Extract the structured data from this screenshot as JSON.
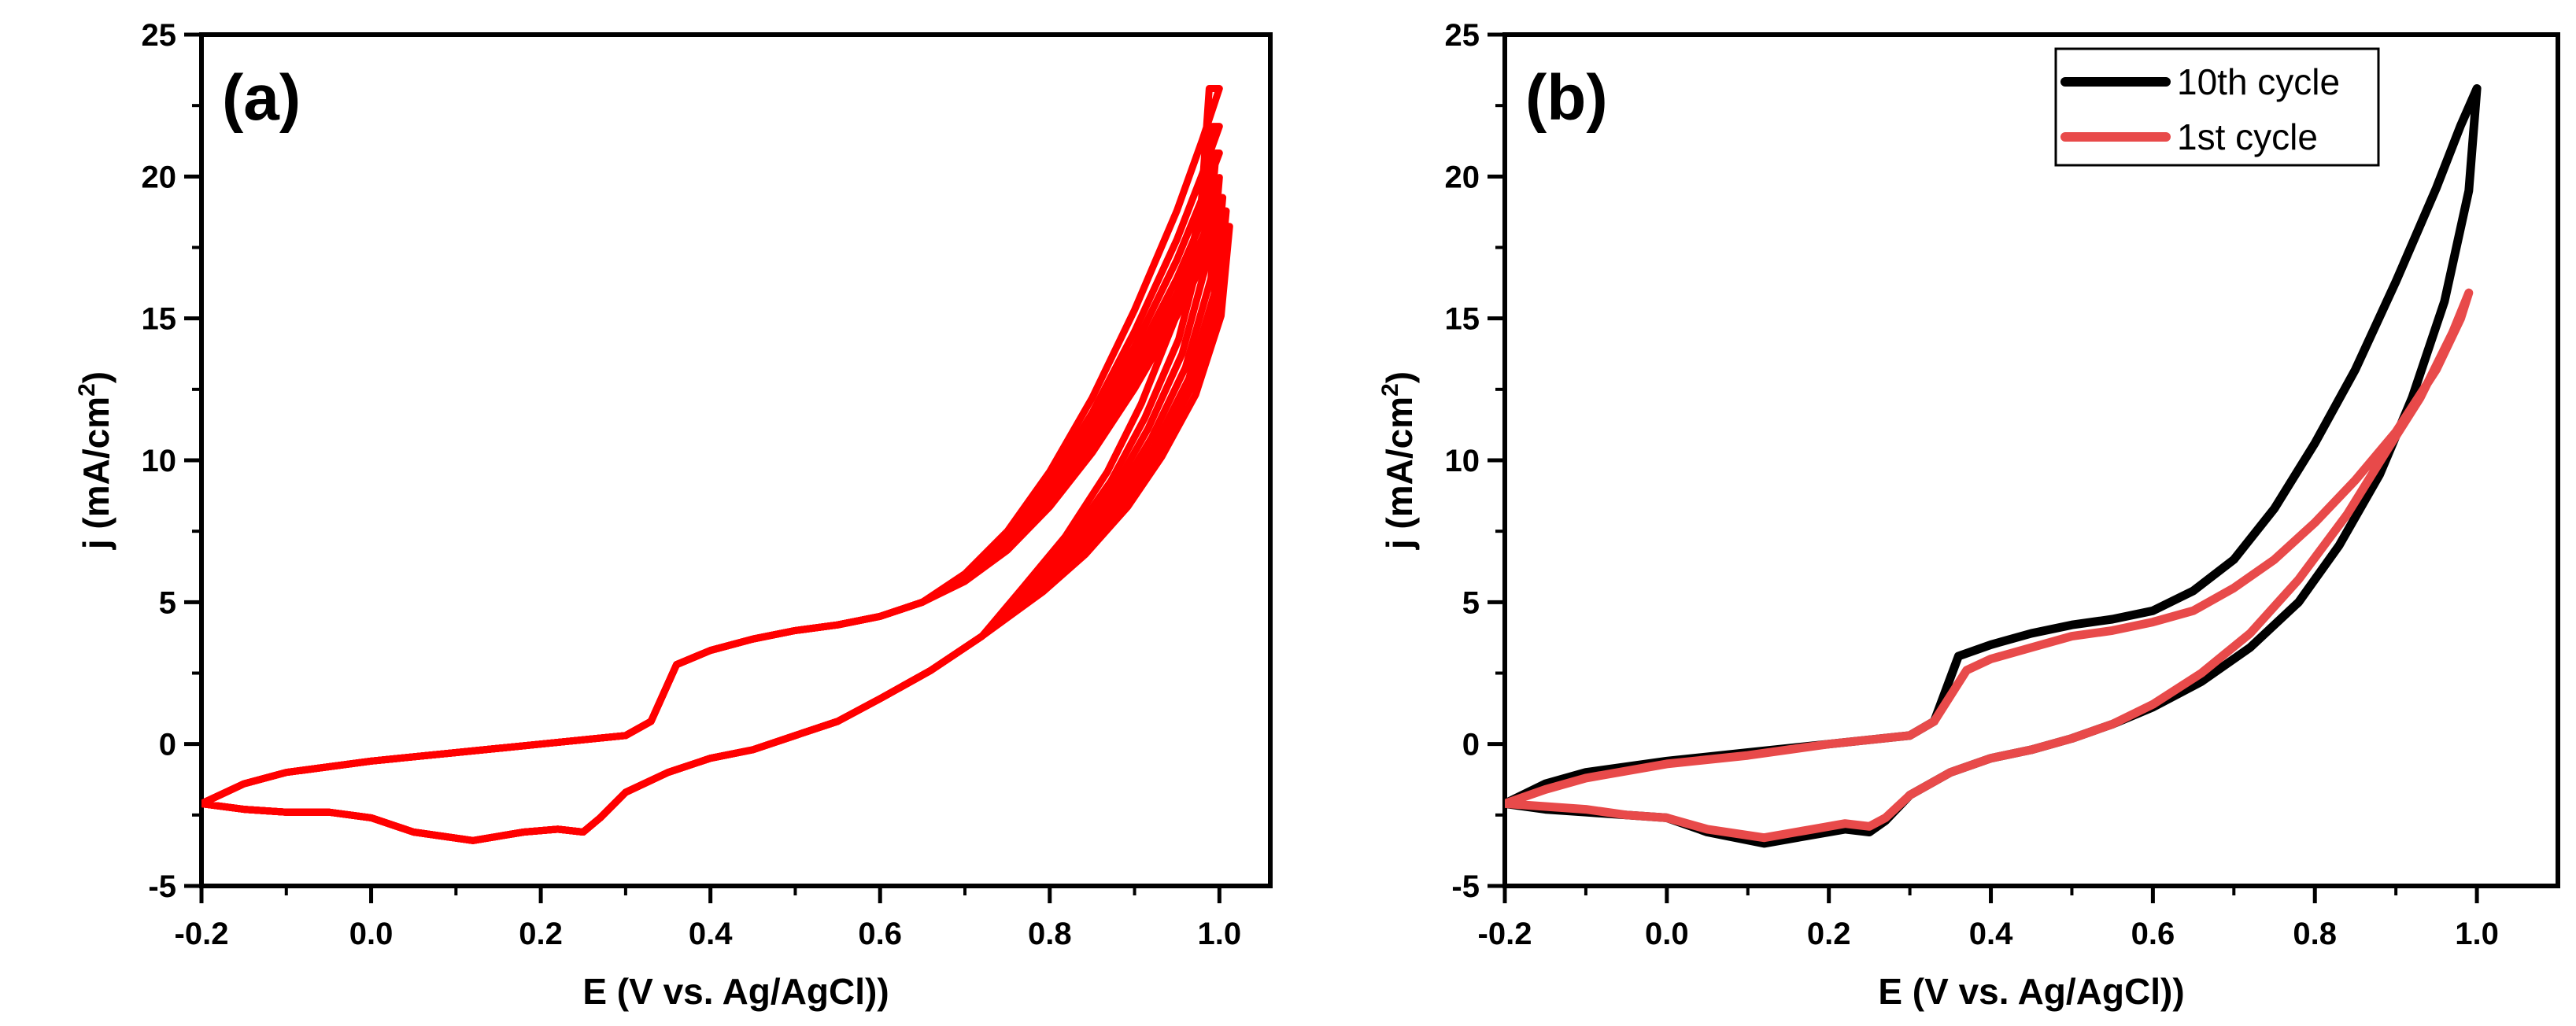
{
  "chart_data": [
    {
      "type": "line",
      "panel_label": "(a)",
      "xlabel": "E (V vs. Ag/AgCl))",
      "ylabel_main": "j (mA/cm",
      "ylabel_sup": "2",
      "ylabel_close": ")",
      "xlim": [
        -0.2,
        1.06
      ],
      "ylim": [
        -5,
        25
      ],
      "xticks": [
        "-0.2",
        "0.0",
        "0.2",
        "0.4",
        "0.6",
        "0.8",
        "1.0"
      ],
      "xtick_values": [
        -0.2,
        0.0,
        0.2,
        0.4,
        0.6,
        0.8,
        1.0
      ],
      "yticks": [
        "-5",
        "0",
        "5",
        "10",
        "15",
        "20",
        "25"
      ],
      "ytick_values": [
        -5,
        0,
        5,
        10,
        15,
        20,
        25
      ],
      "legend": null,
      "series": [
        {
          "color": "#ff0000",
          "peak_currents": [
            23.1,
            21.4,
            20.2,
            19.1,
            18.2,
            17.6,
            16.9
          ],
          "upper": [
            [
              -0.2,
              -2.1
            ],
            [
              -0.15,
              -1.4
            ],
            [
              -0.1,
              -1.0
            ],
            [
              0.0,
              -0.6
            ],
            [
              0.1,
              -0.3
            ],
            [
              0.2,
              0.0
            ],
            [
              0.3,
              0.3
            ],
            [
              0.33,
              0.8
            ],
            [
              0.36,
              2.8
            ],
            [
              0.4,
              3.3
            ],
            [
              0.45,
              3.7
            ],
            [
              0.5,
              4.0
            ],
            [
              0.55,
              4.2
            ],
            [
              0.6,
              4.5
            ],
            [
              0.65,
              5.0
            ],
            [
              0.7,
              6.0
            ],
            [
              0.75,
              7.5
            ],
            [
              0.8,
              9.6
            ],
            [
              0.85,
              12.2
            ],
            [
              0.9,
              15.3
            ],
            [
              0.95,
              18.8
            ],
            [
              0.98,
              21.3
            ],
            [
              1.0,
              23.1
            ]
          ],
          "lower": [
            [
              1.0,
              23.1
            ],
            [
              0.99,
              18.8
            ],
            [
              0.96,
              15.0
            ],
            [
              0.92,
              12.0
            ],
            [
              0.88,
              9.6
            ],
            [
              0.83,
              7.3
            ],
            [
              0.78,
              5.5
            ],
            [
              0.72,
              3.8
            ],
            [
              0.66,
              2.6
            ],
            [
              0.6,
              1.6
            ],
            [
              0.55,
              0.8
            ],
            [
              0.5,
              0.3
            ],
            [
              0.45,
              -0.2
            ],
            [
              0.4,
              -0.5
            ],
            [
              0.35,
              -1.0
            ],
            [
              0.3,
              -1.7
            ],
            [
              0.27,
              -2.6
            ],
            [
              0.25,
              -3.1
            ],
            [
              0.22,
              -3.0
            ],
            [
              0.18,
              -3.1
            ],
            [
              0.12,
              -3.4
            ],
            [
              0.05,
              -3.1
            ],
            [
              0.0,
              -2.6
            ],
            [
              -0.05,
              -2.4
            ],
            [
              -0.1,
              -2.4
            ],
            [
              -0.15,
              -2.3
            ],
            [
              -0.2,
              -2.1
            ]
          ]
        }
      ]
    },
    {
      "type": "line",
      "panel_label": "(b)",
      "xlabel": "E (V vs. Ag/AgCl))",
      "ylabel_main": "j (mA/cm",
      "ylabel_sup": "2",
      "ylabel_close": ")",
      "xlim": [
        -0.2,
        1.1
      ],
      "ylim": [
        -5,
        25
      ],
      "xticks": [
        "-0.2",
        "0.0",
        "0.2",
        "0.4",
        "0.6",
        "0.8",
        "1.0"
      ],
      "xtick_values": [
        -0.2,
        0.0,
        0.2,
        0.4,
        0.6,
        0.8,
        1.0
      ],
      "yticks": [
        "-5",
        "0",
        "5",
        "10",
        "15",
        "20",
        "25"
      ],
      "ytick_values": [
        -5,
        0,
        5,
        10,
        15,
        20,
        25
      ],
      "legend": "top-right",
      "series": [
        {
          "name": "10th cycle",
          "color": "#000000",
          "points": [
            [
              -0.2,
              -2.1
            ],
            [
              -0.15,
              -1.4
            ],
            [
              -0.1,
              -1.0
            ],
            [
              0.0,
              -0.6
            ],
            [
              0.1,
              -0.3
            ],
            [
              0.2,
              0.0
            ],
            [
              0.3,
              0.3
            ],
            [
              0.33,
              0.8
            ],
            [
              0.36,
              3.1
            ],
            [
              0.4,
              3.5
            ],
            [
              0.45,
              3.9
            ],
            [
              0.5,
              4.2
            ],
            [
              0.55,
              4.4
            ],
            [
              0.6,
              4.7
            ],
            [
              0.65,
              5.4
            ],
            [
              0.7,
              6.5
            ],
            [
              0.75,
              8.3
            ],
            [
              0.8,
              10.6
            ],
            [
              0.85,
              13.2
            ],
            [
              0.9,
              16.3
            ],
            [
              0.95,
              19.6
            ],
            [
              0.98,
              21.8
            ],
            [
              1.0,
              23.1
            ],
            [
              0.99,
              19.5
            ],
            [
              0.96,
              15.6
            ],
            [
              0.92,
              12.2
            ],
            [
              0.88,
              9.5
            ],
            [
              0.83,
              7.0
            ],
            [
              0.78,
              5.0
            ],
            [
              0.72,
              3.4
            ],
            [
              0.66,
              2.2
            ],
            [
              0.6,
              1.3
            ],
            [
              0.55,
              0.7
            ],
            [
              0.5,
              0.2
            ],
            [
              0.45,
              -0.2
            ],
            [
              0.4,
              -0.5
            ],
            [
              0.35,
              -1.0
            ],
            [
              0.3,
              -1.8
            ],
            [
              0.27,
              -2.7
            ],
            [
              0.25,
              -3.1
            ],
            [
              0.22,
              -3.0
            ],
            [
              0.18,
              -3.2
            ],
            [
              0.12,
              -3.5
            ],
            [
              0.05,
              -3.1
            ],
            [
              0.0,
              -2.6
            ],
            [
              -0.05,
              -2.5
            ],
            [
              -0.1,
              -2.4
            ],
            [
              -0.15,
              -2.3
            ],
            [
              -0.2,
              -2.1
            ]
          ]
        },
        {
          "name": "1st cycle",
          "color": "#e84a4a",
          "points": [
            [
              -0.2,
              -2.1
            ],
            [
              -0.15,
              -1.6
            ],
            [
              -0.1,
              -1.2
            ],
            [
              0.0,
              -0.7
            ],
            [
              0.1,
              -0.4
            ],
            [
              0.2,
              0.0
            ],
            [
              0.3,
              0.3
            ],
            [
              0.33,
              0.8
            ],
            [
              0.37,
              2.6
            ],
            [
              0.4,
              3.0
            ],
            [
              0.45,
              3.4
            ],
            [
              0.5,
              3.8
            ],
            [
              0.55,
              4.0
            ],
            [
              0.6,
              4.3
            ],
            [
              0.65,
              4.7
            ],
            [
              0.7,
              5.5
            ],
            [
              0.75,
              6.5
            ],
            [
              0.8,
              7.8
            ],
            [
              0.85,
              9.3
            ],
            [
              0.9,
              11.0
            ],
            [
              0.95,
              13.2
            ],
            [
              0.98,
              15.0
            ],
            [
              0.99,
              15.9
            ],
            [
              0.97,
              14.5
            ],
            [
              0.93,
              12.2
            ],
            [
              0.89,
              10.4
            ],
            [
              0.84,
              8.1
            ],
            [
              0.78,
              5.8
            ],
            [
              0.72,
              3.9
            ],
            [
              0.66,
              2.5
            ],
            [
              0.6,
              1.4
            ],
            [
              0.55,
              0.7
            ],
            [
              0.5,
              0.2
            ],
            [
              0.45,
              -0.2
            ],
            [
              0.4,
              -0.5
            ],
            [
              0.35,
              -1.0
            ],
            [
              0.3,
              -1.8
            ],
            [
              0.27,
              -2.6
            ],
            [
              0.25,
              -2.9
            ],
            [
              0.22,
              -2.8
            ],
            [
              0.18,
              -3.0
            ],
            [
              0.12,
              -3.3
            ],
            [
              0.05,
              -3.0
            ],
            [
              0.0,
              -2.6
            ],
            [
              -0.05,
              -2.5
            ],
            [
              -0.1,
              -2.3
            ],
            [
              -0.15,
              -2.2
            ],
            [
              -0.2,
              -2.1
            ]
          ]
        }
      ]
    }
  ]
}
